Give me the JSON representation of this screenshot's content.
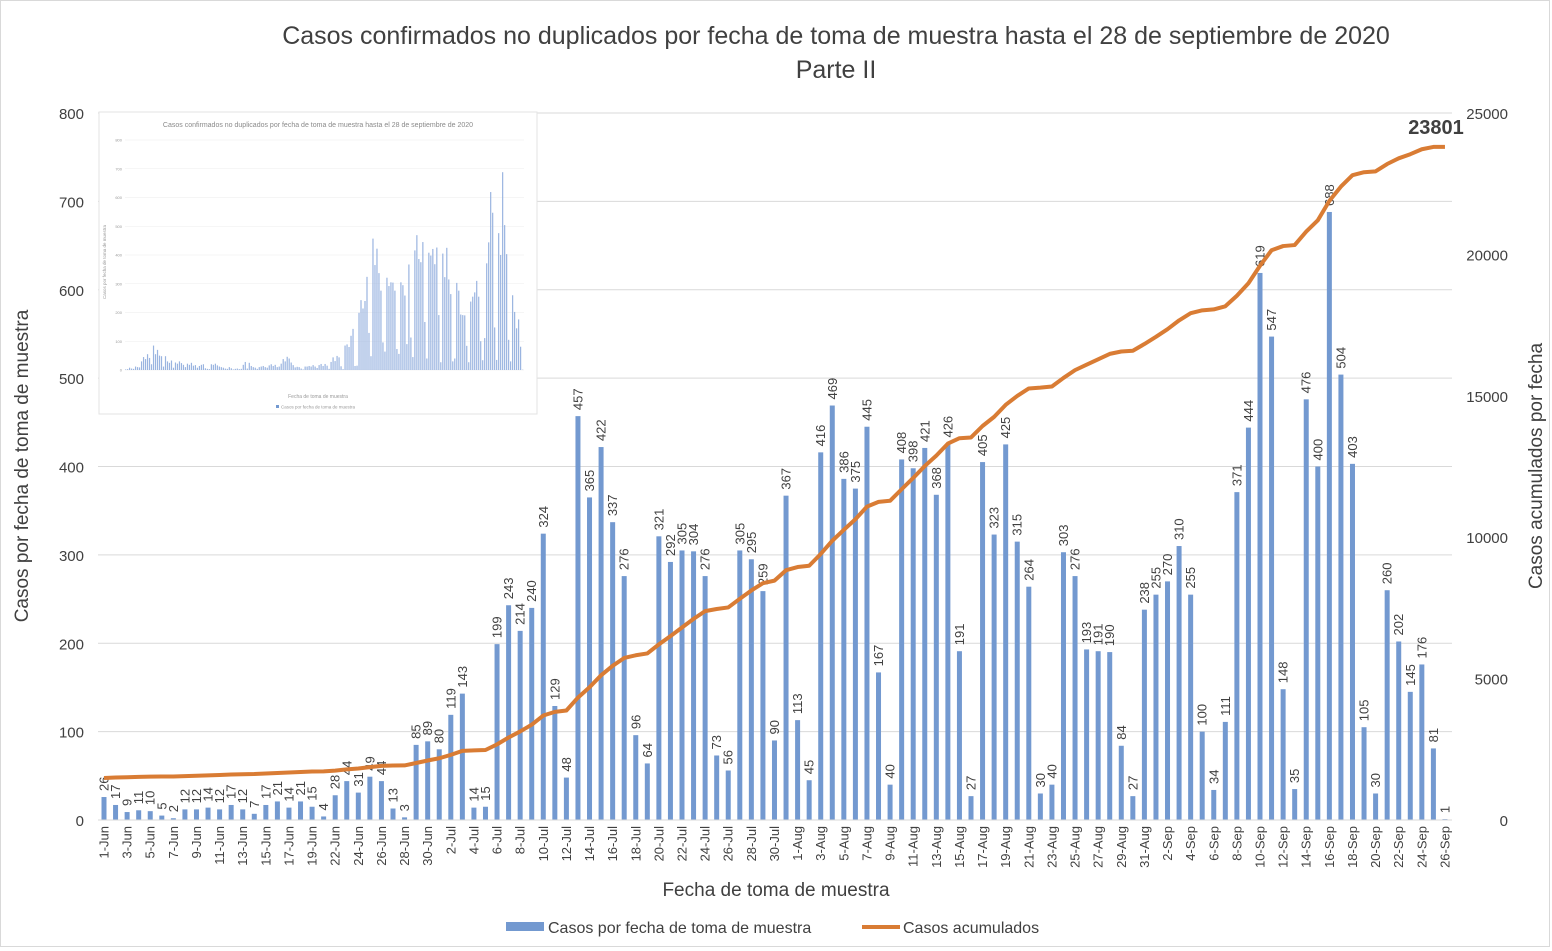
{
  "chart_data": {
    "type": "bar+line",
    "title": "Casos confirmados no duplicados por fecha de toma de muestra hasta el 28 de septiembre de 2020",
    "subtitle": "Parte II",
    "xlabel": "Fecha de toma de muestra",
    "ylabel_left": "Casos por fecha de toma de muestra",
    "ylabel_right": "Casos acumulados por fecha",
    "ylim_left": [
      0,
      800
    ],
    "ylim_right": [
      0,
      25000
    ],
    "yticks_left": [
      "0",
      "100",
      "200",
      "300",
      "400",
      "500",
      "600",
      "700",
      "800"
    ],
    "yticks_right": [
      "0",
      "5000",
      "10000",
      "15000",
      "20000",
      "25000"
    ],
    "grid": true,
    "legend_position": "bottom",
    "legend": [
      "Casos por fecha de toma de muestra",
      "Casos acumulados"
    ],
    "colors": {
      "bars": "#7399d0",
      "line": "#d97c34",
      "grid": "#d9d9d9",
      "text": "#404040"
    },
    "final_annotation": "23801",
    "cumulative_start": 1460,
    "categories": [
      "1-Jun",
      "2-Jun",
      "3-Jun",
      "4-Jun",
      "5-Jun",
      "6-Jun",
      "7-Jun",
      "8-Jun",
      "9-Jun",
      "10-Jun",
      "11-Jun",
      "12-Jun",
      "13-Jun",
      "14-Jun",
      "15-Jun",
      "16-Jun",
      "17-Jun",
      "18-Jun",
      "19-Jun",
      "20-Jun",
      "22-Jun",
      "23-Jun",
      "24-Jun",
      "25-Jun",
      "26-Jun",
      "27-Jun",
      "28-Jun",
      "29-Jun",
      "30-Jun",
      "1-Jul",
      "2-Jul",
      "3-Jul",
      "4-Jul",
      "5-Jul",
      "6-Jul",
      "7-Jul",
      "8-Jul",
      "9-Jul",
      "10-Jul",
      "11-Jul",
      "12-Jul",
      "13-Jul",
      "14-Jul",
      "15-Jul",
      "16-Jul",
      "17-Jul",
      "18-Jul",
      "19-Jul",
      "20-Jul",
      "21-Jul",
      "22-Jul",
      "23-Jul",
      "24-Jul",
      "25-Jul",
      "26-Jul",
      "27-Jul",
      "28-Jul",
      "29-Jul",
      "30-Jul",
      "31-Jul",
      "1-Aug",
      "2-Aug",
      "3-Aug",
      "4-Aug",
      "5-Aug",
      "6-Aug",
      "7-Aug",
      "8-Aug",
      "9-Aug",
      "10-Aug",
      "11-Aug",
      "12-Aug",
      "13-Aug",
      "14-Aug",
      "15-Aug",
      "16-Aug",
      "17-Aug",
      "18-Aug",
      "19-Aug",
      "20-Aug",
      "21-Aug",
      "22-Aug",
      "23-Aug",
      "24-Aug",
      "25-Aug",
      "26-Aug",
      "27-Aug",
      "28-Aug",
      "29-Aug",
      "30-Aug",
      "31-Aug",
      "1-Sep",
      "2-Sep",
      "3-Sep",
      "4-Sep",
      "5-Sep",
      "6-Sep",
      "7-Sep",
      "8-Sep",
      "9-Sep",
      "10-Sep",
      "11-Sep",
      "12-Sep",
      "13-Sep",
      "14-Sep",
      "15-Sep",
      "16-Sep",
      "17-Sep",
      "18-Sep",
      "19-Sep",
      "20-Sep",
      "21-Sep",
      "22-Sep",
      "23-Sep",
      "24-Sep",
      "25-Sep",
      "26-Sep"
    ],
    "shown_tick_labels": [
      "1-Jun",
      "3-Jun",
      "5-Jun",
      "7-Jun",
      "9-Jun",
      "11-Jun",
      "13-Jun",
      "15-Jun",
      "17-Jun",
      "19-Jun",
      "22-Jun",
      "24-Jun",
      "26-Jun",
      "28-Jun",
      "30-Jun",
      "2-Jul",
      "4-Jul",
      "6-Jul",
      "8-Jul",
      "10-Jul",
      "12-Jul",
      "14-Jul",
      "16-Jul",
      "18-Jul",
      "20-Jul",
      "22-Jul",
      "24-Jul",
      "26-Jul",
      "28-Jul",
      "30-Jul",
      "1-Aug",
      "3-Aug",
      "5-Aug",
      "7-Aug",
      "9-Aug",
      "11-Aug",
      "13-Aug",
      "15-Aug",
      "17-Aug",
      "19-Aug",
      "21-Aug",
      "23-Aug",
      "25-Aug",
      "27-Aug",
      "29-Aug",
      "31-Aug",
      "2-Sep",
      "4-Sep",
      "6-Sep",
      "8-Sep",
      "10-Sep",
      "12-Sep",
      "14-Sep",
      "16-Sep",
      "18-Sep",
      "20-Sep",
      "22-Sep",
      "24-Sep",
      "26-Sep"
    ],
    "series": [
      {
        "name": "Casos por fecha de toma de muestra",
        "type": "bar",
        "values": [
          26,
          17,
          9,
          11,
          10,
          5,
          2,
          12,
          12,
          14,
          12,
          17,
          12,
          7,
          17,
          21,
          14,
          21,
          15,
          4,
          28,
          44,
          31,
          49,
          44,
          13,
          3,
          85,
          89,
          80,
          119,
          143,
          14,
          15,
          199,
          243,
          214,
          240,
          324,
          129,
          48,
          457,
          365,
          422,
          337,
          276,
          96,
          64,
          321,
          292,
          305,
          304,
          276,
          73,
          56,
          305,
          295,
          259,
          90,
          367,
          113,
          45,
          416,
          469,
          386,
          375,
          445,
          167,
          40,
          408,
          398,
          421,
          368,
          426,
          191,
          27,
          405,
          323,
          425,
          315,
          264,
          30,
          40,
          303,
          276,
          193,
          191,
          190,
          84,
          27,
          238,
          255,
          270,
          310,
          255,
          100,
          34,
          111,
          371,
          444,
          619,
          547,
          148,
          35,
          476,
          400,
          688,
          504,
          403,
          105,
          30,
          260,
          202,
          145,
          176,
          81,
          1
        ]
      },
      {
        "name": "Casos acumulados",
        "type": "line",
        "axis": "right",
        "derived": "cumulative_start + running sum of daily values"
      }
    ]
  },
  "inset": {
    "title": "Casos confirmados no duplicados por fecha de toma de muestra hasta el 28 de septiembre de 2020",
    "ylabel": "Casos por fecha de toma de muestra",
    "xlabel": "Fecha de toma de muestra",
    "legend": "Casos por fecha de toma de muestra",
    "yticks": [
      "0",
      "100",
      "200",
      "300",
      "400",
      "500",
      "600",
      "700",
      "800"
    ],
    "early_values": [
      2,
      3,
      8,
      5,
      4,
      12,
      10,
      9,
      30,
      45,
      38,
      55,
      42,
      20,
      85,
      55,
      70,
      50,
      48,
      12,
      48,
      30,
      25,
      33,
      8,
      26,
      22,
      30,
      24,
      18,
      10,
      22,
      18,
      25,
      15,
      17,
      8,
      14,
      18,
      20,
      6,
      4,
      3,
      20,
      18,
      22,
      16,
      12,
      10,
      8,
      5,
      4,
      10,
      6,
      2,
      4,
      5,
      3,
      4,
      18,
      28,
      5,
      25,
      14,
      10,
      8,
      4,
      10,
      12,
      14,
      10,
      8,
      16,
      20,
      14,
      18,
      10,
      12,
      22,
      38,
      30,
      46,
      40
    ]
  }
}
